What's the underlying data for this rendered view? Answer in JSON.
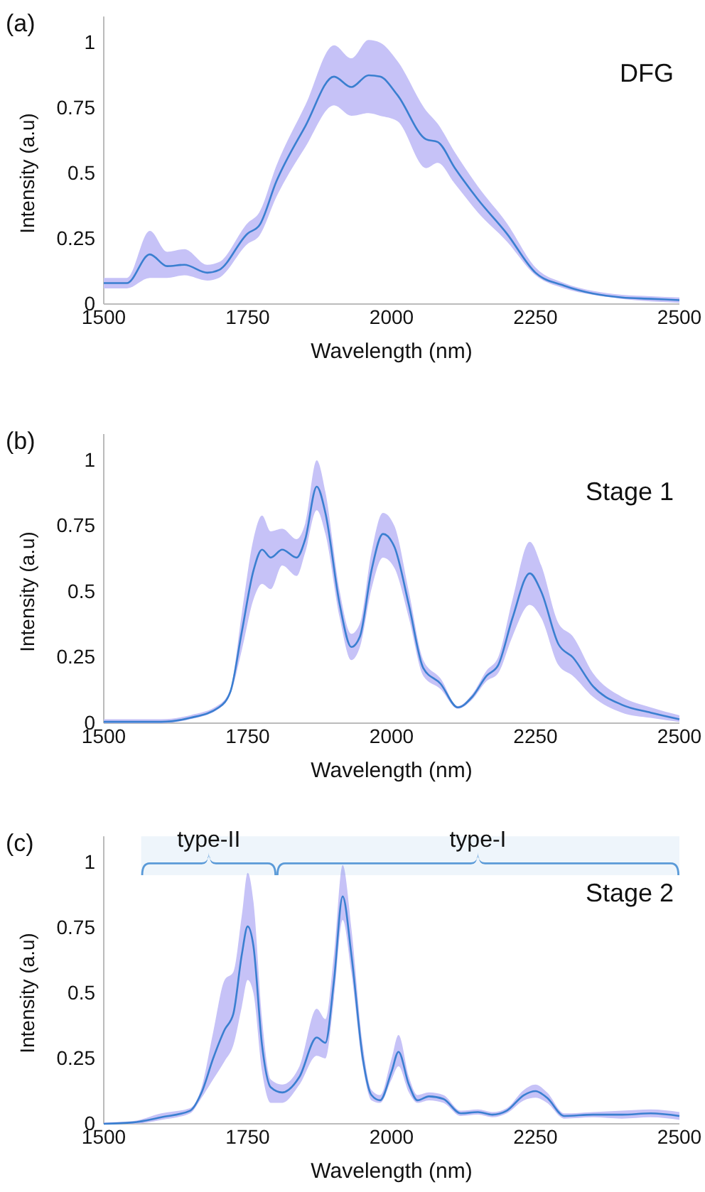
{
  "chart_data": [
    {
      "type": "line",
      "title": "DFG",
      "annotations": [
        "(a)"
      ],
      "xlabel": "Wavelength (nm)",
      "ylabel": "Intensity (a.u)",
      "xlim": [
        1500,
        2500
      ],
      "xticks": [
        1500,
        1750,
        2000,
        2250,
        2500
      ],
      "ylim": [
        0,
        1.1
      ],
      "yticks": [
        0,
        0.25,
        0.5,
        0.75,
        1
      ],
      "grid": false,
      "series": [
        {
          "color": "#3a7fd0",
          "x": [
            1500,
            1540,
            1580,
            1610,
            1640,
            1680,
            1700,
            1750,
            1770,
            1800,
            1850,
            1900,
            1930,
            1960,
            1980,
            2010,
            2060,
            2080,
            2110,
            2150,
            2200,
            2250,
            2300,
            2350,
            2400,
            2450,
            2500
          ],
          "values": [
            0.08,
            0.08,
            0.19,
            0.145,
            0.15,
            0.12,
            0.13,
            0.27,
            0.3,
            0.47,
            0.68,
            0.87,
            0.83,
            0.875,
            0.87,
            0.8,
            0.63,
            0.62,
            0.52,
            0.4,
            0.27,
            0.12,
            0.07,
            0.04,
            0.025,
            0.02,
            0.015
          ],
          "lower": [
            0.06,
            0.06,
            0.1,
            0.1,
            0.11,
            0.09,
            0.1,
            0.23,
            0.26,
            0.41,
            0.6,
            0.76,
            0.72,
            0.73,
            0.72,
            0.7,
            0.52,
            0.54,
            0.46,
            0.35,
            0.24,
            0.11,
            0.06,
            0.035,
            0.02,
            0.01,
            0.005
          ],
          "upper": [
            0.1,
            0.1,
            0.28,
            0.2,
            0.21,
            0.15,
            0.16,
            0.31,
            0.35,
            0.53,
            0.76,
            0.99,
            0.94,
            1.01,
            1.0,
            0.93,
            0.74,
            0.69,
            0.58,
            0.45,
            0.31,
            0.14,
            0.08,
            0.05,
            0.035,
            0.03,
            0.025
          ]
        }
      ]
    },
    {
      "type": "line",
      "title": "Stage 1",
      "annotations": [
        "(b)"
      ],
      "xlabel": "Wavelength (nm)",
      "ylabel": "Intensity (a.u)",
      "xlim": [
        1500,
        2500
      ],
      "xticks": [
        1500,
        1750,
        2000,
        2250,
        2500
      ],
      "ylim": [
        0,
        1.1
      ],
      "yticks": [
        0,
        0.25,
        0.5,
        0.75,
        1
      ],
      "grid": false,
      "series": [
        {
          "color": "#3a7fd0",
          "x": [
            1500,
            1600,
            1650,
            1700,
            1720,
            1740,
            1760,
            1775,
            1790,
            1810,
            1835,
            1850,
            1870,
            1885,
            1910,
            1930,
            1945,
            1965,
            1985,
            2005,
            2030,
            2055,
            2085,
            2115,
            2140,
            2165,
            2185,
            2210,
            2240,
            2260,
            2290,
            2315,
            2350,
            2400,
            2450,
            2500
          ],
          "values": [
            0.005,
            0.005,
            0.02,
            0.06,
            0.12,
            0.35,
            0.58,
            0.66,
            0.63,
            0.66,
            0.63,
            0.7,
            0.9,
            0.8,
            0.45,
            0.29,
            0.33,
            0.58,
            0.72,
            0.67,
            0.45,
            0.21,
            0.15,
            0.06,
            0.1,
            0.18,
            0.22,
            0.4,
            0.57,
            0.5,
            0.3,
            0.25,
            0.14,
            0.07,
            0.04,
            0.015
          ],
          "lower": [
            0,
            0,
            0.015,
            0.055,
            0.11,
            0.28,
            0.47,
            0.53,
            0.51,
            0.6,
            0.56,
            0.65,
            0.81,
            0.72,
            0.4,
            0.24,
            0.29,
            0.51,
            0.63,
            0.59,
            0.4,
            0.18,
            0.13,
            0.055,
            0.09,
            0.16,
            0.19,
            0.33,
            0.45,
            0.4,
            0.22,
            0.18,
            0.1,
            0.04,
            0.02,
            0.005
          ],
          "upper": [
            0.015,
            0.015,
            0.03,
            0.07,
            0.13,
            0.42,
            0.7,
            0.79,
            0.73,
            0.74,
            0.7,
            0.76,
            1.0,
            0.88,
            0.5,
            0.34,
            0.38,
            0.65,
            0.8,
            0.75,
            0.5,
            0.24,
            0.17,
            0.065,
            0.11,
            0.2,
            0.25,
            0.47,
            0.69,
            0.6,
            0.38,
            0.33,
            0.19,
            0.1,
            0.06,
            0.03
          ]
        }
      ]
    },
    {
      "type": "line",
      "title": "Stage 2",
      "annotations": [
        "(c)"
      ],
      "xlabel": "Wavelength (nm)",
      "ylabel": "Intensity (a.u)",
      "xlim": [
        1500,
        2500
      ],
      "xticks": [
        1500,
        1750,
        2000,
        2250,
        2500
      ],
      "ylim": [
        0,
        1.1
      ],
      "yticks": [
        0,
        0.25,
        0.5,
        0.75,
        1
      ],
      "grid": false,
      "bands": [
        {
          "axis": "x",
          "from": 1565,
          "to": 1800,
          "label": "type-II",
          "color": "#5a9ad8"
        },
        {
          "axis": "x",
          "from": 1800,
          "to": 2500,
          "label": "type-I",
          "color": "#5a9ad8"
        }
      ],
      "series": [
        {
          "color": "#3a7fd0",
          "x": [
            1500,
            1550,
            1600,
            1650,
            1670,
            1690,
            1710,
            1725,
            1740,
            1750,
            1760,
            1775,
            1790,
            1810,
            1840,
            1870,
            1885,
            1900,
            1915,
            1930,
            1950,
            1965,
            1980,
            2000,
            2012,
            2030,
            2045,
            2065,
            2090,
            2120,
            2150,
            2175,
            2200,
            2230,
            2250,
            2270,
            2300,
            2350,
            2400,
            2450,
            2500
          ],
          "values": [
            0,
            0.005,
            0.025,
            0.05,
            0.12,
            0.25,
            0.36,
            0.42,
            0.65,
            0.755,
            0.68,
            0.3,
            0.14,
            0.12,
            0.18,
            0.33,
            0.31,
            0.55,
            0.87,
            0.65,
            0.25,
            0.11,
            0.09,
            0.2,
            0.275,
            0.15,
            0.09,
            0.105,
            0.095,
            0.04,
            0.045,
            0.035,
            0.05,
            0.11,
            0.125,
            0.1,
            0.03,
            0.035,
            0.035,
            0.04,
            0.03
          ],
          "lower": [
            0,
            0,
            0.015,
            0.04,
            0.1,
            0.17,
            0.24,
            0.3,
            0.45,
            0.55,
            0.5,
            0.2,
            0.08,
            0.08,
            0.15,
            0.26,
            0.25,
            0.48,
            0.78,
            0.58,
            0.22,
            0.09,
            0.08,
            0.17,
            0.22,
            0.12,
            0.08,
            0.09,
            0.08,
            0.03,
            0.035,
            0.025,
            0.04,
            0.09,
            0.1,
            0.08,
            0.02,
            0.025,
            0.02,
            0.025,
            0.015
          ],
          "upper": [
            0.005,
            0.01,
            0.04,
            0.06,
            0.14,
            0.35,
            0.55,
            0.58,
            0.8,
            0.96,
            0.85,
            0.4,
            0.17,
            0.15,
            0.22,
            0.44,
            0.4,
            0.65,
            0.99,
            0.75,
            0.3,
            0.13,
            0.11,
            0.25,
            0.34,
            0.18,
            0.11,
            0.12,
            0.11,
            0.05,
            0.055,
            0.045,
            0.06,
            0.13,
            0.15,
            0.12,
            0.04,
            0.045,
            0.05,
            0.055,
            0.045
          ]
        }
      ]
    }
  ]
}
